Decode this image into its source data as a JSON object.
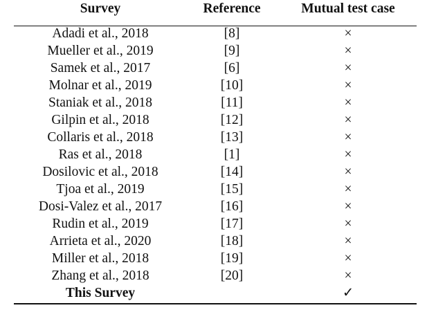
{
  "table": {
    "header": [
      "Survey",
      "Reference",
      "Mutual test case"
    ],
    "rows": [
      {
        "survey": "Adadi et al., 2018",
        "reference": "[8]",
        "mutual": "×"
      },
      {
        "survey": "Mueller et al., 2019",
        "reference": "[9]",
        "mutual": "×"
      },
      {
        "survey": "Samek et al., 2017",
        "reference": "[6]",
        "mutual": "×"
      },
      {
        "survey": "Molnar et al., 2019",
        "reference": "[10]",
        "mutual": "×"
      },
      {
        "survey": "Staniak et al., 2018",
        "reference": "[11]",
        "mutual": "×"
      },
      {
        "survey": "Gilpin et al., 2018",
        "reference": "[12]",
        "mutual": "×"
      },
      {
        "survey": "Collaris et al., 2018",
        "reference": "[13]",
        "mutual": "×"
      },
      {
        "survey": "Ras et al., 2018",
        "reference": "[1]",
        "mutual": "×"
      },
      {
        "survey": "Dosilovic et al., 2018",
        "reference": "[14]",
        "mutual": "×"
      },
      {
        "survey": "Tjoa et al., 2019",
        "reference": "[15]",
        "mutual": "×"
      },
      {
        "survey": "Dosi-Valez et al., 2017",
        "reference": "[16]",
        "mutual": "×"
      },
      {
        "survey": "Rudin et al., 2019",
        "reference": "[17]",
        "mutual": "×"
      },
      {
        "survey": "Arrieta et al., 2020",
        "reference": "[18]",
        "mutual": "×"
      },
      {
        "survey": "Miller et al., 2018",
        "reference": "[19]",
        "mutual": "×"
      },
      {
        "survey": "Zhang et al., 2018",
        "reference": "[20]",
        "mutual": "×"
      },
      {
        "survey": "This Survey",
        "mutual": "✓"
      }
    ]
  }
}
